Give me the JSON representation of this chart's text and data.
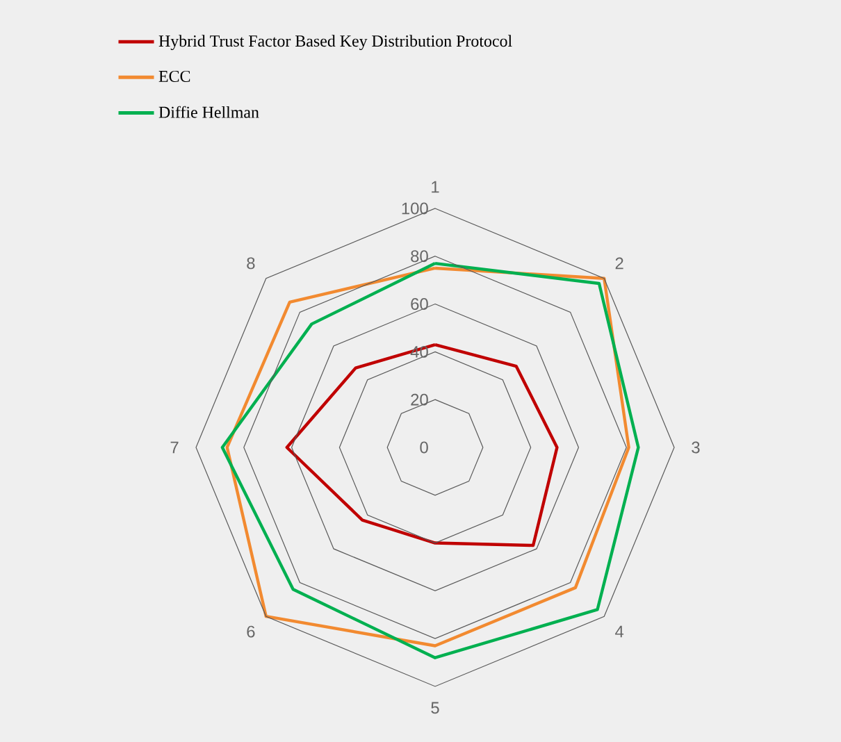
{
  "chart_data": {
    "type": "radar",
    "categories": [
      "1",
      "2",
      "3",
      "4",
      "5",
      "6",
      "7",
      "8"
    ],
    "series": [
      {
        "name": "Hybrid Trust Factor Based Key Distribution Protocol",
        "color": "#c00000",
        "values": [
          43,
          48,
          51,
          58,
          40,
          43,
          62,
          47
        ]
      },
      {
        "name": "ECC",
        "color": "#f28a30",
        "values": [
          75,
          100,
          81,
          83,
          83,
          100,
          87,
          86
        ]
      },
      {
        "name": "Diffie Hellman",
        "color": "#00b050",
        "values": [
          77,
          97,
          85,
          96,
          88,
          84,
          89,
          73
        ]
      }
    ],
    "ylim": [
      0,
      100
    ],
    "yticks": [
      0,
      20,
      40,
      60,
      80,
      100
    ],
    "grid": true,
    "legend": "top left",
    "marker": "none",
    "line_style": "solid"
  }
}
